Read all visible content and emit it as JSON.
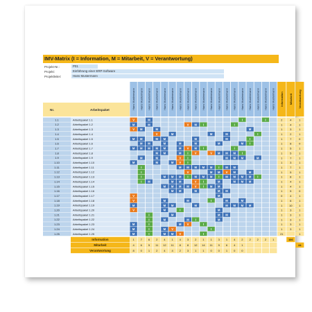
{
  "title": "IMV-Matrix    (I = Information, M = Mitarbeit, V = Verantwortung)",
  "meta": [
    {
      "label": "Projekt-Nr.:",
      "value": "P01"
    },
    {
      "label": "Projekt:",
      "value": "Einführung einer ERP-Software"
    },
    {
      "label": "Projektleiter:",
      "value": "Hans Mustermann"
    }
  ],
  "headers": {
    "nr": "Nr.",
    "package": "Arbeitspaket"
  },
  "person_name": "Hans Mustermann",
  "summary_headers": [
    "Information",
    "Mitarbeit",
    "Verantwortung"
  ],
  "rows": [
    {
      "nr": "1.1",
      "name": "Arbeitspaket 1.1",
      "cells": "V.M...........I..I.",
      "sum": [
        "2",
        "4",
        "1"
      ]
    },
    {
      "nr": "1.2",
      "name": "Arbeitspaket 1.2",
      "cells": "M.M....VMI...I.....",
      "sum": [
        "1",
        "4",
        "1"
      ]
    },
    {
      "nr": "1.3",
      "name": "Arbeitspaket 1.3",
      "cells": "VM.M...........M...",
      "sum": [
        "1",
        "3",
        "1"
      ]
    },
    {
      "nr": "1.4",
      "name": "Arbeitspaket 1.4",
      "cells": "...V.M....M.M...I..",
      "sum": [
        "1",
        "2",
        "1"
      ]
    },
    {
      "nr": "1.5",
      "name": "Arbeitspaket 1.5",
      "cells": "MM.MM...M...M..I...",
      "sum": [
        "1",
        "7",
        "0"
      ]
    },
    {
      "nr": "1.6",
      "name": "Arbeitspaket 1.6",
      "cells": ".MM.M.M.M..M..MI...",
      "sum": [
        "1",
        "8",
        "0"
      ]
    },
    {
      "nr": "1.7",
      "name": "Arbeitspaket 1.7",
      "cells": "MMMMM.MVMI...I.....",
      "sum": [
        "1",
        "5",
        "1"
      ]
    },
    {
      "nr": "1.8",
      "name": "Arbeitspaket 1.8",
      "cells": "...MM.MIV.VMMMI....",
      "sum": [
        "1",
        "5",
        "1"
      ]
    },
    {
      "nr": "1.9",
      "name": "Arbeitspaket 1.9",
      "cells": ".M.M..VI....MMM.M..",
      "sum": [
        "1",
        "7",
        "1"
      ]
    },
    {
      "nr": "1.10",
      "name": "Arbeitspaket 1.10",
      "cells": "M..M.MVI...........",
      "sum": [
        "1",
        "3",
        "1"
      ]
    },
    {
      "nr": "1.11",
      "name": "Arbeitspaket 1.11",
      "cells": ".I....MMMMMIMM.....",
      "sum": [
        "1",
        "7",
        "1"
      ]
    },
    {
      "nr": "1.12",
      "name": "Arbeitspaket 1.12",
      "cells": ".I.....V..MMVM.M...",
      "sum": [
        "1",
        "5",
        "1"
      ]
    },
    {
      "nr": "1.13",
      "name": "Arbeitspaket 1.13",
      "cells": ".I..MMMIMMMIMMMMI..",
      "sum": [
        "1",
        "8",
        "1"
      ]
    },
    {
      "nr": "1.14",
      "name": "Arbeitspaket 1.14",
      "cells": ".IM..MM.VI.M.MMM...",
      "sum": [
        "1",
        "4",
        "1"
      ]
    },
    {
      "nr": "1.15",
      "name": "Arbeitspaket 1.15",
      "cells": "....MMMMVIMM.......",
      "sum": [
        "1",
        "4",
        "1"
      ]
    },
    {
      "nr": "1.16",
      "name": "Arbeitspaket 1.16",
      "cells": ".....MM.M..MM......",
      "sum": [
        "1",
        "5",
        "0"
      ]
    },
    {
      "nr": "1.17",
      "name": "Arbeitspaket 1.17",
      "cells": "V..........M.......",
      "sum": [
        "0",
        "4",
        "1"
      ]
    },
    {
      "nr": "1.18",
      "name": "Arbeitspaket 1.18",
      "cells": "V...M..M..I.M.M....",
      "sum": [
        "1",
        "6",
        "1"
      ]
    },
    {
      "nr": "1.19",
      "name": "Arbeitspaket 1.19",
      "cells": "M...MM..M...MMMM...",
      "sum": [
        "1",
        "10",
        "1"
      ]
    },
    {
      "nr": "1.20",
      "name": "Arbeitspaket 1.20",
      "cells": "V...M.I....M.......",
      "sum": [
        "1",
        "3",
        "1"
      ]
    },
    {
      "nr": "1.21",
      "name": "Arbeitspaket 1.21",
      "cells": "..I..M.....MM......",
      "sum": [
        "1",
        "3",
        "1"
      ]
    },
    {
      "nr": "1.22",
      "name": "Arbeitspaket 1.22",
      "cells": "..I.M..MI..M.......",
      "sum": [
        "1",
        "3",
        "1"
      ]
    },
    {
      "nr": "1.23",
      "name": "Arbeitspaket 1.23",
      "cells": "M.I...MV.I.........",
      "sum": [
        "1",
        "3",
        "1"
      ]
    },
    {
      "nr": "1.24",
      "name": "Arbeitspaket 1.24",
      "cells": "M.I.MV....I........",
      "sum": [
        "1",
        "3",
        "1"
      ]
    },
    {
      "nr": "1.25",
      "name": "Arbeitspaket 1.25",
      "cells": "M.I.MMV..I.........",
      "sum": [
        "21",
        "",
        "1"
      ]
    }
  ],
  "footer": [
    {
      "label": "Information",
      "values": [
        "1",
        "7",
        "6",
        "2",
        "4",
        "1",
        "4",
        "3",
        "2",
        "1",
        "1",
        "3",
        "1",
        "4",
        "2",
        "2",
        "2",
        "2",
        "1"
      ]
    },
    {
      "label": "Mitarbeit",
      "values": [
        "4",
        "6",
        "5",
        "11",
        "12",
        "11",
        "8",
        "8",
        "12",
        "14",
        "11",
        "9",
        "6",
        "4",
        "1",
        "",
        "",
        "",
        ""
      ]
    },
    {
      "label": "Verantwortung",
      "values": [
        "8",
        "0",
        "1",
        "2",
        "4",
        "4",
        "2",
        "3",
        "1",
        "1",
        "0",
        "0",
        "1",
        "0",
        "0",
        "",
        "",
        "",
        ""
      ]
    }
  ],
  "totals": {
    "info": "106",
    "mitarbeit": "24"
  },
  "colors": {
    "accent": "#f5b719",
    "light_yellow": "#fbe49a",
    "blue": "#bcd4ec",
    "person_col": "#9dc1e6",
    "M": "#3f73b8",
    "I": "#5aaa47",
    "V": "#ea7b1d"
  }
}
